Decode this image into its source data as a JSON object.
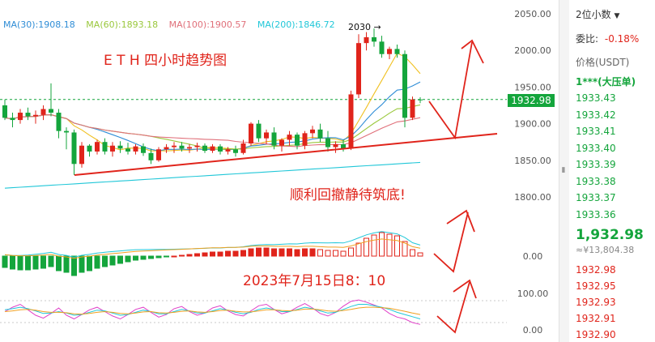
{
  "legend": {
    "ma30": "MA(30):1908.18",
    "ma60": "MA(60):1893.18",
    "ma100": "MA(100):1900.57",
    "ma200": "MA(200):1846.72"
  },
  "annotations": {
    "title": "E T H 四小时趋势图",
    "note": "顺利回撤静待筑底!",
    "date": "2023年7月15日8：10",
    "peak_label": "2030",
    "last_price_tag": "1932.98"
  },
  "panel": {
    "precision": "2位小数",
    "ratio_label": "委比:",
    "ratio_value": "-0.18%",
    "price_header": "价格(USDT)",
    "big_order": "1***(大压单)",
    "bids": [
      "1933.43",
      "1933.42",
      "1933.41",
      "1933.40",
      "1933.39",
      "1933.38",
      "1933.37",
      "1933.36"
    ],
    "last_price": "1,932.98",
    "cny": "≈¥13,804.38",
    "asks": [
      "1932.98",
      "1932.95",
      "1932.93",
      "1932.91",
      "1932.90"
    ]
  },
  "colors": {
    "up": "#e0241b",
    "down": "#14a53c",
    "ma30": "#2f8dd6",
    "ma60": "#9ac83c",
    "ma100": "#e0707a",
    "ma200": "#21c7d8",
    "annotation": "#e0241b"
  },
  "chart_data": [
    {
      "type": "candlestick",
      "title": "",
      "yticks": [
        2050,
        2000,
        1950,
        1900,
        1850,
        1800
      ],
      "ylim": [
        1780,
        2065
      ],
      "last_price": 1932.98,
      "peak": 2030,
      "candles": [
        {
          "o": 1925,
          "h": 1933,
          "l": 1905,
          "c": 1908
        },
        {
          "o": 1908,
          "h": 1915,
          "l": 1895,
          "c": 1905
        },
        {
          "o": 1905,
          "h": 1920,
          "l": 1900,
          "c": 1915
        },
        {
          "o": 1915,
          "h": 1922,
          "l": 1905,
          "c": 1910
        },
        {
          "o": 1910,
          "h": 1918,
          "l": 1900,
          "c": 1912
        },
        {
          "o": 1912,
          "h": 1925,
          "l": 1905,
          "c": 1920
        },
        {
          "o": 1920,
          "h": 1955,
          "l": 1910,
          "c": 1915
        },
        {
          "o": 1915,
          "h": 1920,
          "l": 1880,
          "c": 1890
        },
        {
          "o": 1890,
          "h": 1895,
          "l": 1865,
          "c": 1888
        },
        {
          "o": 1888,
          "h": 1892,
          "l": 1830,
          "c": 1845
        },
        {
          "o": 1845,
          "h": 1875,
          "l": 1840,
          "c": 1870
        },
        {
          "o": 1870,
          "h": 1872,
          "l": 1855,
          "c": 1862
        },
        {
          "o": 1862,
          "h": 1878,
          "l": 1858,
          "c": 1875
        },
        {
          "o": 1875,
          "h": 1880,
          "l": 1858,
          "c": 1862
        },
        {
          "o": 1862,
          "h": 1875,
          "l": 1855,
          "c": 1870
        },
        {
          "o": 1870,
          "h": 1876,
          "l": 1860,
          "c": 1866
        },
        {
          "o": 1866,
          "h": 1874,
          "l": 1858,
          "c": 1862
        },
        {
          "o": 1862,
          "h": 1872,
          "l": 1858,
          "c": 1869
        },
        {
          "o": 1869,
          "h": 1873,
          "l": 1856,
          "c": 1860
        },
        {
          "o": 1860,
          "h": 1866,
          "l": 1845,
          "c": 1850
        },
        {
          "o": 1850,
          "h": 1868,
          "l": 1848,
          "c": 1865
        },
        {
          "o": 1865,
          "h": 1872,
          "l": 1860,
          "c": 1868
        },
        {
          "o": 1868,
          "h": 1875,
          "l": 1860,
          "c": 1870
        },
        {
          "o": 1870,
          "h": 1875,
          "l": 1862,
          "c": 1866
        },
        {
          "o": 1866,
          "h": 1872,
          "l": 1860,
          "c": 1868
        },
        {
          "o": 1868,
          "h": 1874,
          "l": 1862,
          "c": 1870
        },
        {
          "o": 1870,
          "h": 1873,
          "l": 1860,
          "c": 1863
        },
        {
          "o": 1863,
          "h": 1872,
          "l": 1860,
          "c": 1869
        },
        {
          "o": 1869,
          "h": 1872,
          "l": 1858,
          "c": 1862
        },
        {
          "o": 1862,
          "h": 1868,
          "l": 1858,
          "c": 1865
        },
        {
          "o": 1865,
          "h": 1870,
          "l": 1855,
          "c": 1860
        },
        {
          "o": 1860,
          "h": 1878,
          "l": 1858,
          "c": 1873
        },
        {
          "o": 1873,
          "h": 1902,
          "l": 1870,
          "c": 1900
        },
        {
          "o": 1900,
          "h": 1905,
          "l": 1875,
          "c": 1880
        },
        {
          "o": 1880,
          "h": 1892,
          "l": 1872,
          "c": 1888
        },
        {
          "o": 1888,
          "h": 1895,
          "l": 1865,
          "c": 1870
        },
        {
          "o": 1870,
          "h": 1880,
          "l": 1862,
          "c": 1878
        },
        {
          "o": 1878,
          "h": 1890,
          "l": 1870,
          "c": 1885
        },
        {
          "o": 1885,
          "h": 1888,
          "l": 1865,
          "c": 1870
        },
        {
          "o": 1870,
          "h": 1890,
          "l": 1865,
          "c": 1887
        },
        {
          "o": 1887,
          "h": 1897,
          "l": 1880,
          "c": 1892
        },
        {
          "o": 1892,
          "h": 1900,
          "l": 1875,
          "c": 1880
        },
        {
          "o": 1880,
          "h": 1890,
          "l": 1862,
          "c": 1868
        },
        {
          "o": 1868,
          "h": 1876,
          "l": 1860,
          "c": 1872
        },
        {
          "o": 1872,
          "h": 1878,
          "l": 1862,
          "c": 1866
        },
        {
          "o": 1866,
          "h": 1945,
          "l": 1864,
          "c": 1940
        },
        {
          "o": 1940,
          "h": 2022,
          "l": 1935,
          "c": 2010
        },
        {
          "o": 2010,
          "h": 2025,
          "l": 2000,
          "c": 2018
        },
        {
          "o": 2018,
          "h": 2030,
          "l": 2005,
          "c": 2012
        },
        {
          "o": 2012,
          "h": 2020,
          "l": 1990,
          "c": 1995
        },
        {
          "o": 1995,
          "h": 2005,
          "l": 1988,
          "c": 2002
        },
        {
          "o": 2002,
          "h": 2008,
          "l": 1990,
          "c": 1995
        },
        {
          "o": 1995,
          "h": 2000,
          "l": 1895,
          "c": 1908
        },
        {
          "o": 1908,
          "h": 1937,
          "l": 1905,
          "c": 1933
        },
        {
          "o": 1933,
          "h": 1936,
          "l": 1928,
          "c": 1932.98
        }
      ]
    },
    {
      "type": "bar",
      "title": "",
      "yticks": [
        0.0
      ],
      "values": [
        -14,
        -16,
        -17,
        -17,
        -16,
        -15,
        -13,
        -18,
        -20,
        -24,
        -20,
        -18,
        -15,
        -13,
        -11,
        -9,
        -7,
        -5,
        -4,
        -3,
        -2,
        -1,
        0,
        1,
        2,
        3,
        4,
        5,
        5,
        6,
        6,
        7,
        9,
        10,
        10,
        9,
        9,
        9,
        8,
        9,
        9,
        8,
        7,
        7,
        6,
        10,
        16,
        22,
        26,
        29,
        27,
        25,
        18,
        8,
        4
      ]
    },
    {
      "type": "line",
      "title": "",
      "yticks": [
        100.0,
        0.0
      ],
      "ylim": [
        -10,
        120
      ],
      "series": [
        {
          "color": "#e040c8",
          "values": [
            50,
            62,
            70,
            55,
            40,
            32,
            45,
            60,
            40,
            30,
            42,
            55,
            62,
            50,
            38,
            30,
            42,
            56,
            62,
            48,
            35,
            42,
            58,
            64,
            50,
            40,
            46,
            60,
            66,
            52,
            42,
            38,
            52,
            66,
            70,
            56,
            44,
            50,
            62,
            72,
            60,
            45,
            38,
            48,
            65,
            78,
            82,
            76,
            68,
            60,
            45,
            35,
            30,
            20,
            15
          ]
        },
        {
          "color": "#21c7d8",
          "values": [
            55,
            58,
            62,
            58,
            52,
            45,
            46,
            50,
            46,
            40,
            42,
            48,
            54,
            52,
            46,
            40,
            42,
            48,
            54,
            50,
            44,
            44,
            50,
            56,
            52,
            46,
            46,
            52,
            58,
            54,
            48,
            44,
            48,
            56,
            60,
            56,
            50,
            50,
            56,
            62,
            58,
            52,
            46,
            48,
            56,
            64,
            70,
            70,
            66,
            62,
            56,
            48,
            42,
            36,
            30
          ]
        },
        {
          "color": "#f0a020",
          "values": [
            50,
            52,
            55,
            56,
            54,
            50,
            48,
            48,
            47,
            44,
            43,
            45,
            48,
            50,
            48,
            45,
            44,
            46,
            49,
            50,
            47,
            46,
            48,
            51,
            52,
            49,
            48,
            50,
            53,
            54,
            51,
            49,
            49,
            52,
            55,
            55,
            53,
            52,
            54,
            57,
            57,
            55,
            52,
            51,
            53,
            56,
            60,
            62,
            62,
            61,
            59,
            55,
            51,
            46,
            42
          ]
        }
      ]
    }
  ]
}
